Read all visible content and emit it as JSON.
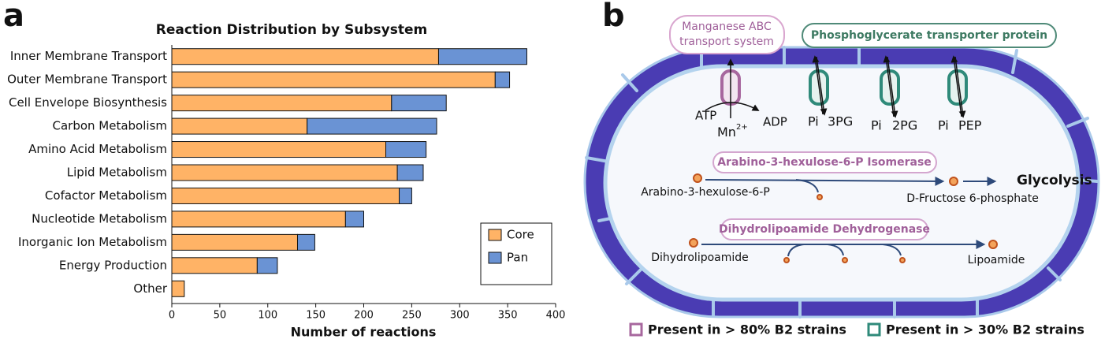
{
  "chart_data": {
    "type": "stacked-barh",
    "panel_label": "a",
    "title": "Reaction Distribution by Subsystem",
    "xlabel": "Number of reactions",
    "categories": [
      "Inner Membrane Transport",
      "Outer Membrane Transport",
      "Cell Envelope Biosynthesis",
      "Carbon Metabolism",
      "Amino Acid Metabolism",
      "Lipid Metabolism",
      "Cofactor Metabolism",
      "Nucleotide Metabolism",
      "Inorganic Ion Metabolism",
      "Energy Production",
      "Other"
    ],
    "series": [
      {
        "name": "Core",
        "color": "#ffb366",
        "values": [
          278,
          337,
          229,
          141,
          223,
          235,
          237,
          181,
          131,
          89,
          13
        ]
      },
      {
        "name": "Pan",
        "color": "#6a93d4",
        "values": [
          92,
          15,
          57,
          135,
          42,
          27,
          13,
          19,
          18,
          21,
          0
        ]
      }
    ],
    "xlim": [
      0,
      400
    ],
    "xticks": [
      0,
      50,
      100,
      150,
      200,
      250,
      300,
      350,
      400
    ],
    "legend": "lower right"
  },
  "diagram": {
    "panel_label": "b",
    "manganese_label": [
      "Manganese ABC",
      "transport system"
    ],
    "phosphoglycerate_label": "Phosphoglycerate transporter protein",
    "atp": "ATP",
    "ion": {
      "base": "Mn",
      "charge": "2+"
    },
    "adp": "ADP",
    "transporters": [
      {
        "in": "Pi",
        "out": "3PG"
      },
      {
        "in": "Pi",
        "out": "2PG"
      },
      {
        "in": "Pi",
        "out": "PEP"
      }
    ],
    "isomerase": {
      "enzyme": "Arabino-3-hexulose-6-P Isomerase",
      "substrate": "Arabino-3-hexulose-6-P",
      "product": "D-Fructose 6-phosphate",
      "pathway": "Glycolysis"
    },
    "dehydrogenase": {
      "enzyme": "Dihydrolipoamide Dehydrogenase",
      "substrate": "Dihydrolipoamide",
      "product": "Lipoamide"
    },
    "legend": [
      "Present in > 80% B2 strains",
      "Present in > 30% B2 strains"
    ]
  }
}
